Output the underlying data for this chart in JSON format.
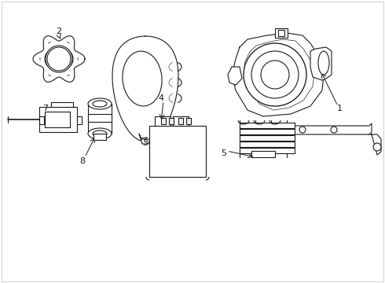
{
  "background_color": "#ffffff",
  "line_color": "#1a1a1a",
  "line_width": 0.8,
  "fig_width": 4.9,
  "fig_height": 3.6,
  "dpi": 100
}
